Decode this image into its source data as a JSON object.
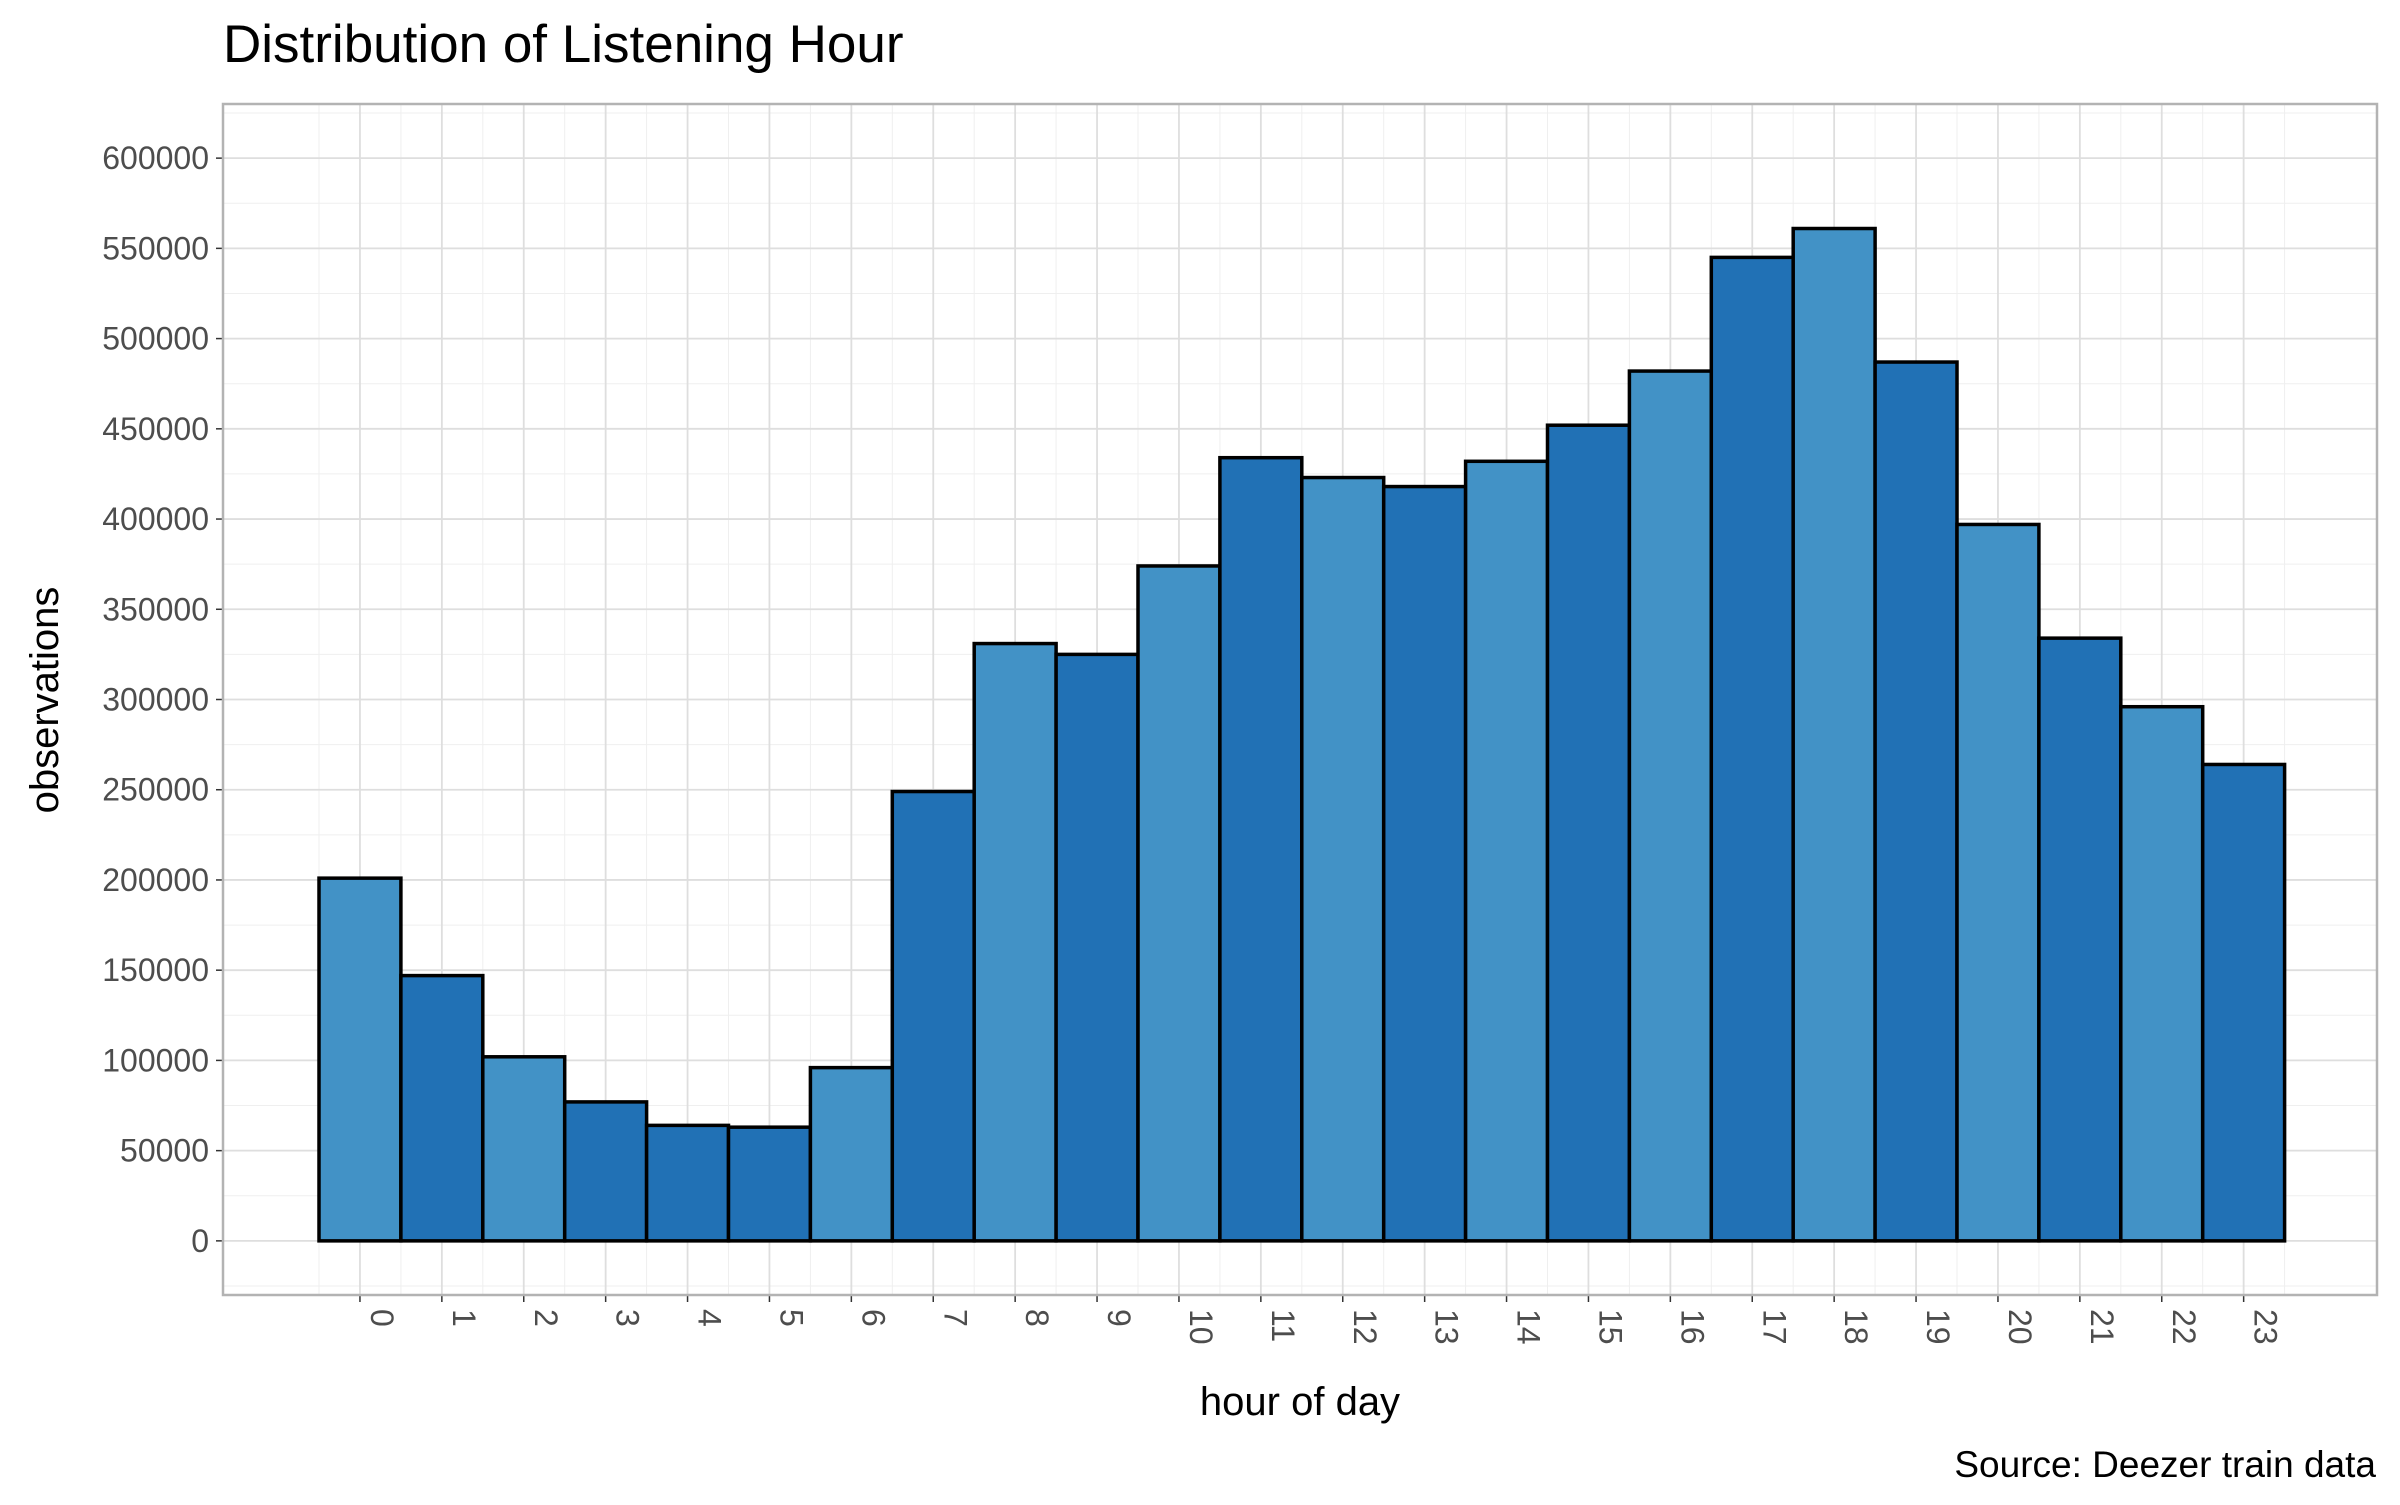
{
  "chart_data": {
    "type": "bar",
    "title": "Distribution of Listening Hour",
    "xlabel": "hour of day",
    "ylabel": "observations",
    "caption": "Source: Deezer train data",
    "categories": [
      "0",
      "1",
      "2",
      "3",
      "4",
      "5",
      "6",
      "7",
      "8",
      "9",
      "10",
      "11",
      "12",
      "13",
      "14",
      "15",
      "16",
      "17",
      "18",
      "19",
      "20",
      "21",
      "22",
      "23"
    ],
    "values": [
      201000,
      147000,
      102000,
      77000,
      64000,
      63000,
      96000,
      249000,
      331000,
      325000,
      374000,
      434000,
      423000,
      418000,
      432000,
      452000,
      482000,
      545000,
      561000,
      487000,
      397000,
      334000,
      296000,
      264000
    ],
    "ylim": [
      -30000,
      630000
    ],
    "yticks": [
      0,
      50000,
      100000,
      150000,
      200000,
      250000,
      300000,
      350000,
      400000,
      450000,
      500000,
      550000,
      600000
    ],
    "grid": true,
    "legend": "none",
    "colors": {
      "bar_light": "#4292c6",
      "bar_dark": "#2171b5",
      "bar_outline": "#000000",
      "panel_border": "#b3b3b3",
      "grid": "#dedede"
    }
  }
}
